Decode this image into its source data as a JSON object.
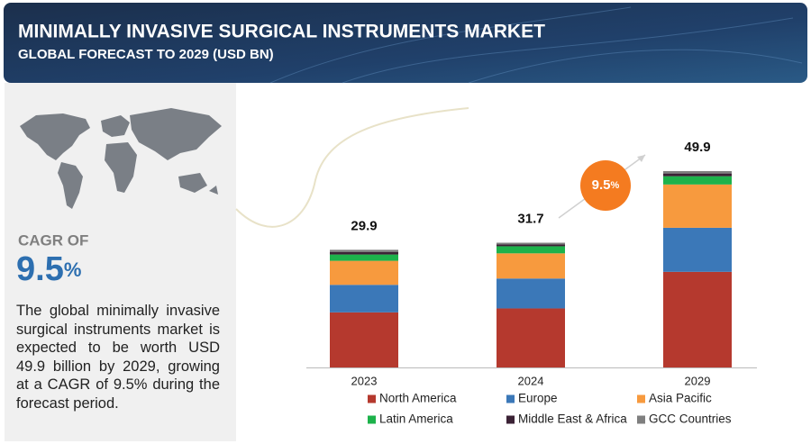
{
  "header": {
    "title": "MINIMALLY INVASIVE SURGICAL INSTRUMENTS MARKET",
    "subtitle": "GLOBAL FORECAST TO 2029 (USD BN)"
  },
  "cagr": {
    "label": "CAGR OF",
    "value": "9.5",
    "unit": "%"
  },
  "description": "The global minimally invasive surgical instruments market is expected to be worth USD 49.9 billion by 2029, growing at a CAGR of 9.5% during the forecast period.",
  "chart_data": {
    "type": "stacked_bar",
    "categories": [
      "2023",
      "2024",
      "2029"
    ],
    "totals": [
      29.9,
      31.7,
      49.9
    ],
    "growth_badge": {
      "value": "9.5",
      "unit": "%"
    },
    "series": [
      {
        "name": "North America",
        "color": "#b5392e",
        "values": [
          14.0,
          15.0,
          24.3
        ]
      },
      {
        "name": "Europe",
        "color": "#3b78b8",
        "values": [
          7.0,
          7.6,
          11.2
        ]
      },
      {
        "name": "Asia Pacific",
        "color": "#f79a3e",
        "values": [
          6.1,
          6.4,
          11.0
        ]
      },
      {
        "name": "Latin America",
        "color": "#1db24b",
        "values": [
          1.6,
          1.8,
          2.1
        ]
      },
      {
        "name": "Middle East & Africa",
        "color": "#3b2235",
        "values": [
          0.6,
          0.5,
          0.7
        ]
      },
      {
        "name": "GCC Countries",
        "color": "#7f7f7f",
        "values": [
          0.6,
          0.4,
          0.6
        ]
      }
    ]
  }
}
